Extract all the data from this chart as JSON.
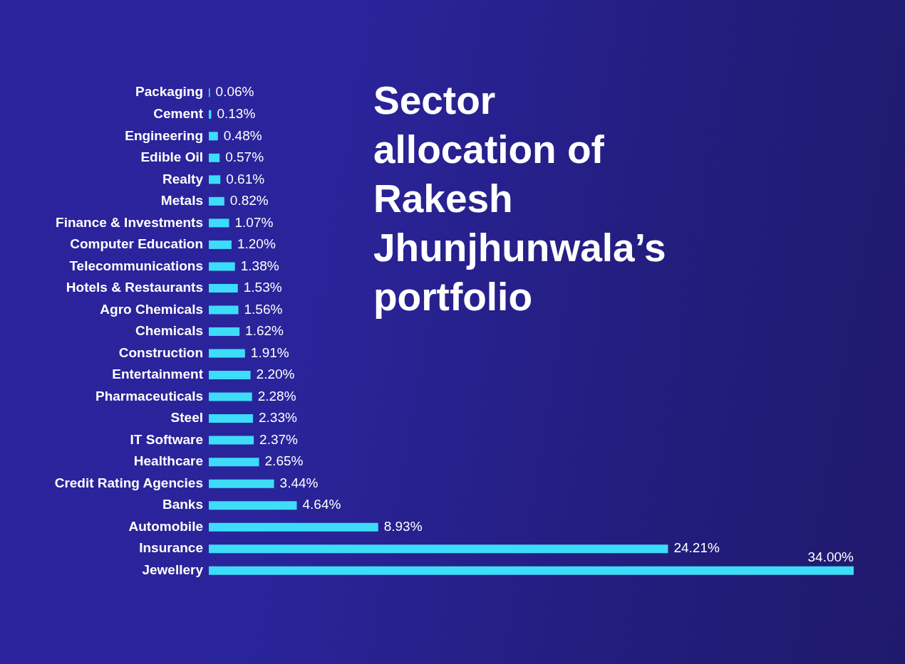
{
  "chart_data": {
    "type": "bar",
    "orientation": "horizontal",
    "title": "Sector allocation of Rakesh Jhunjhunwala’s portfolio",
    "categories": [
      "Packaging",
      "Cement",
      "Engineering",
      "Edible Oil",
      "Realty",
      "Metals",
      "Finance & Investments",
      "Computer Education",
      "Telecommunications",
      "Hotels & Restaurants",
      "Agro Chemicals",
      "Chemicals",
      "Construction",
      "Entertainment",
      "Pharmaceuticals",
      "Steel",
      "IT Software",
      "Healthcare",
      "Credit Rating Agencies",
      "Banks",
      "Automobile",
      "Insurance",
      "Jewellery"
    ],
    "values": [
      0.06,
      0.13,
      0.48,
      0.57,
      0.61,
      0.82,
      1.07,
      1.2,
      1.38,
      1.53,
      1.56,
      1.62,
      1.91,
      2.2,
      2.28,
      2.33,
      2.37,
      2.65,
      3.44,
      4.64,
      8.93,
      24.21,
      34.0
    ],
    "value_labels": [
      "0.06%",
      "0.13%",
      "0.48%",
      "0.57%",
      "0.61%",
      "0.82%",
      "1.07%",
      "1.20%",
      "1.38%",
      "1.53%",
      "1.56%",
      "1.62%",
      "1.91%",
      "2.20%",
      "2.28%",
      "2.33%",
      "2.37%",
      "2.65%",
      "3.44%",
      "4.64%",
      "8.93%",
      "24.21%",
      "34.00%"
    ],
    "color": "#3ddcf8",
    "tick_labels": "y"
  }
}
